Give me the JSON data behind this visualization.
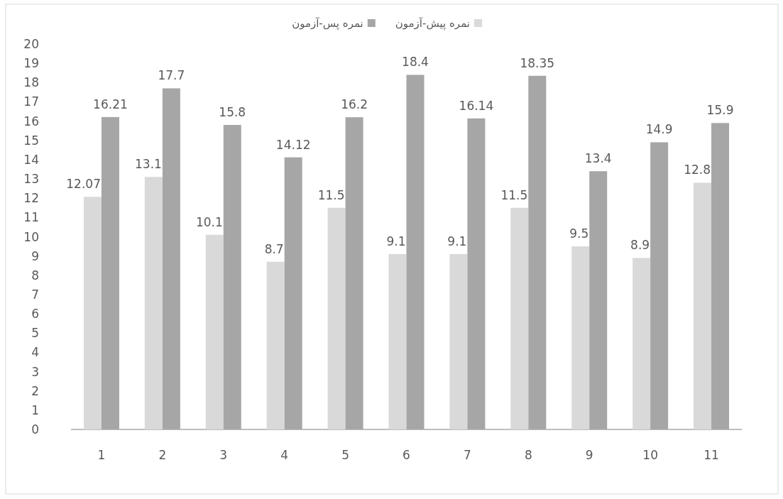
{
  "chart_data": {
    "type": "bar",
    "categories": [
      "1",
      "2",
      "3",
      "4",
      "5",
      "6",
      "7",
      "8",
      "9",
      "10",
      "11"
    ],
    "series": [
      {
        "name": "نمره پیش-آزمون",
        "color": "#d9d9d9",
        "values": [
          12.07,
          13.1,
          10.1,
          8.7,
          11.5,
          9.1,
          9.1,
          11.5,
          9.5,
          8.9,
          12.8
        ]
      },
      {
        "name": "نمره پس-آزمون",
        "color": "#a6a6a6",
        "values": [
          16.21,
          17.7,
          15.8,
          14.12,
          16.2,
          18.4,
          16.14,
          18.35,
          13.4,
          14.9,
          15.9
        ]
      }
    ],
    "ylim": [
      0,
      20
    ],
    "yticks": [
      0,
      1,
      2,
      3,
      4,
      5,
      6,
      7,
      8,
      9,
      10,
      11,
      12,
      13,
      14,
      15,
      16,
      17,
      18,
      19,
      20
    ],
    "data_labels": true,
    "legend": "top",
    "grid": false
  }
}
